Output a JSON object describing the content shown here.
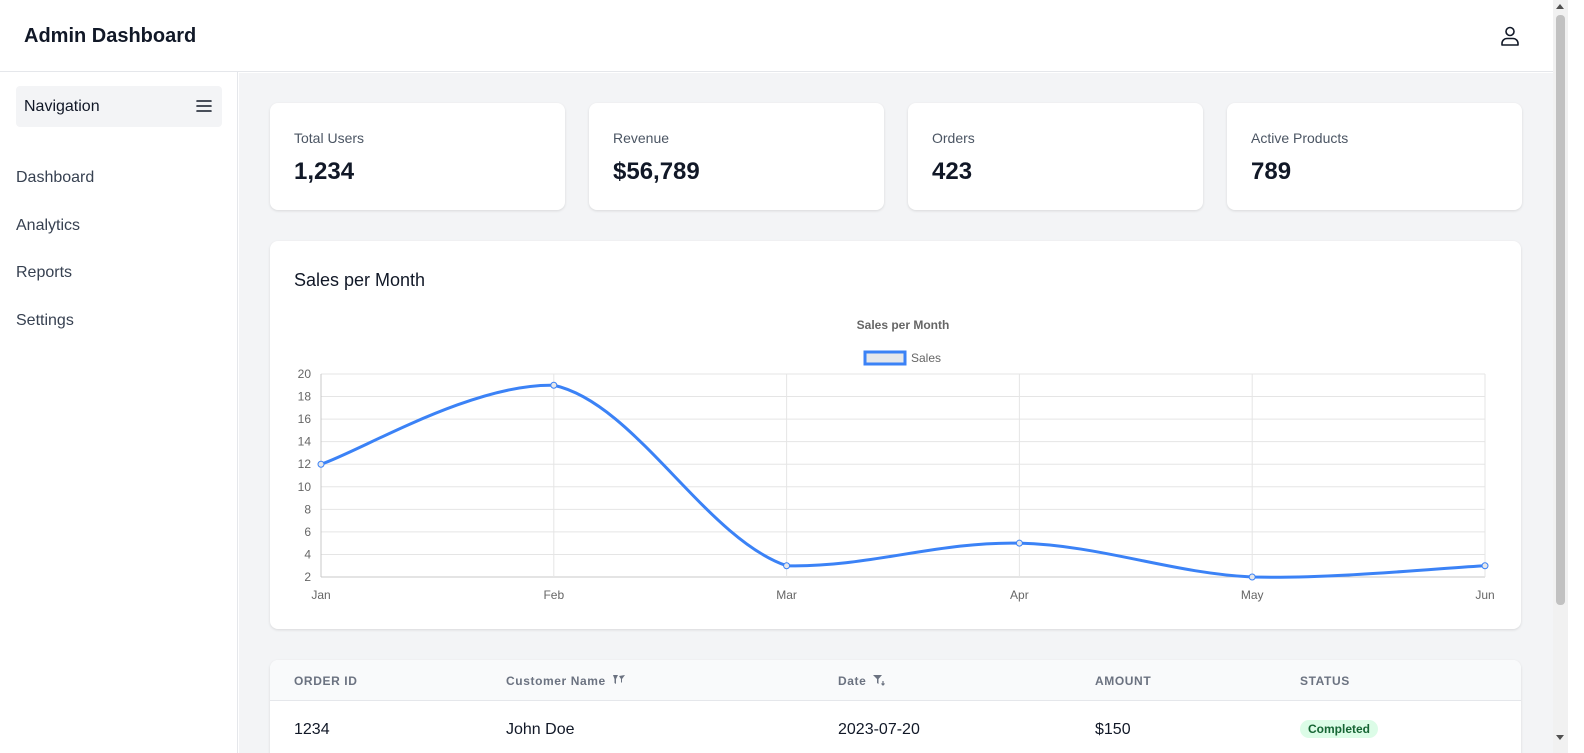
{
  "app": {
    "title": "Admin Dashboard"
  },
  "icons": {
    "user": "user-icon",
    "menu": "hamburger-menu-icon",
    "filter": "filter-icon"
  },
  "sidebar": {
    "header": "Navigation",
    "items": [
      {
        "label": "Dashboard"
      },
      {
        "label": "Analytics"
      },
      {
        "label": "Reports"
      },
      {
        "label": "Settings"
      }
    ]
  },
  "stats": [
    {
      "label": "Total Users",
      "value": "1,234"
    },
    {
      "label": "Revenue",
      "value": "$56,789"
    },
    {
      "label": "Orders",
      "value": "423"
    },
    {
      "label": "Active Products",
      "value": "789"
    }
  ],
  "chart_section": {
    "heading": "Sales per Month"
  },
  "chart_data": {
    "type": "line",
    "title": "Sales per Month",
    "categories": [
      "Jan",
      "Feb",
      "Mar",
      "Apr",
      "May",
      "Jun"
    ],
    "series": [
      {
        "name": "Sales",
        "values": [
          12,
          19,
          3,
          5,
          2,
          3
        ],
        "color": "#3b82f6"
      }
    ],
    "ylim": [
      2,
      20
    ],
    "yticks": [
      2,
      4,
      6,
      8,
      10,
      12,
      14,
      16,
      18,
      20
    ],
    "grid": true,
    "legend": "top-center"
  },
  "table": {
    "columns": [
      "ORDER ID",
      "Customer Name",
      "Date",
      "AMOUNT",
      "STATUS"
    ],
    "rows": [
      {
        "order_id": "1234",
        "customer": "John Doe",
        "date": "2023-07-20",
        "amount": "$150",
        "status": "Completed"
      }
    ],
    "status_color": "#166534"
  }
}
